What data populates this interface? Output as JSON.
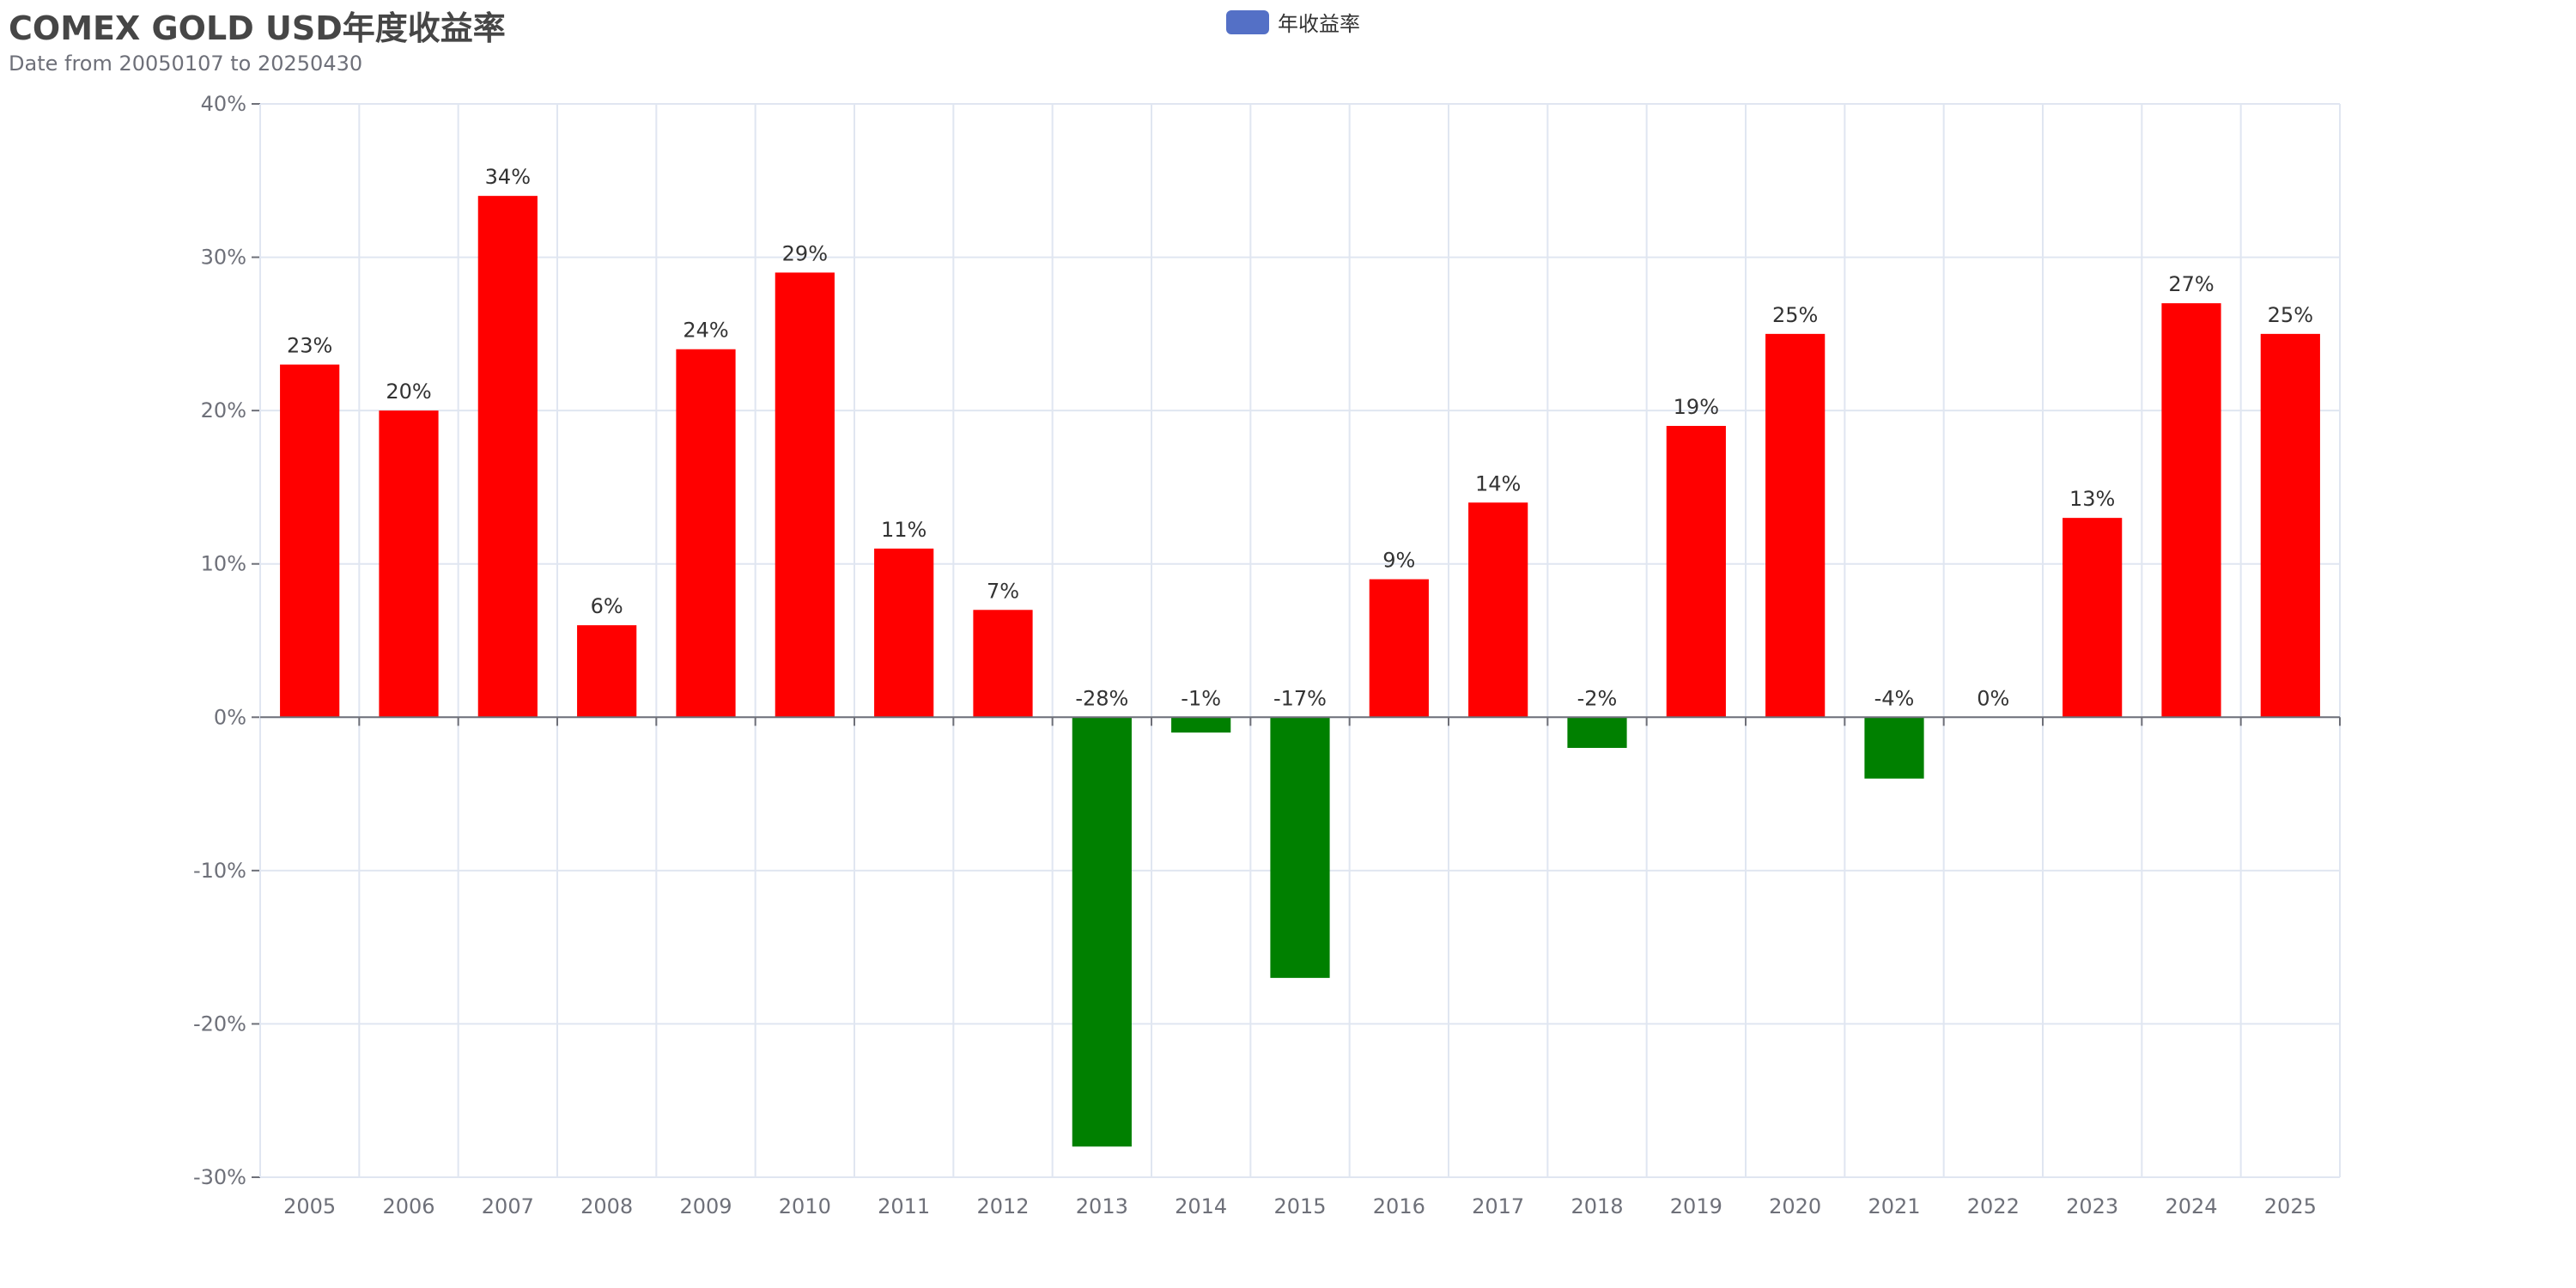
{
  "chart_data": {
    "type": "bar",
    "title": "COMEX GOLD USD年度收益率",
    "subtitle": "Date from 20050107 to 20250430",
    "legend": {
      "position": "top-center",
      "entries": [
        "年收益率"
      ]
    },
    "categories": [
      "2005",
      "2006",
      "2007",
      "2008",
      "2009",
      "2010",
      "2011",
      "2012",
      "2013",
      "2014",
      "2015",
      "2016",
      "2017",
      "2018",
      "2019",
      "2020",
      "2021",
      "2022",
      "2023",
      "2024",
      "2025"
    ],
    "series": [
      {
        "name": "年收益率",
        "values": [
          23,
          20,
          34,
          6,
          24,
          29,
          11,
          7,
          -28,
          -1,
          -17,
          9,
          14,
          -2,
          19,
          25,
          -4,
          0,
          13,
          27,
          25
        ],
        "labels": [
          "23%",
          "20%",
          "34%",
          "6%",
          "24%",
          "29%",
          "11%",
          "7%",
          "-28%",
          "-1%",
          "-17%",
          "9%",
          "14%",
          "-2%",
          "19%",
          "25%",
          "-4%",
          "0%",
          "13%",
          "27%",
          "25%"
        ]
      }
    ],
    "ylim": [
      -30,
      40
    ],
    "yticks": [
      40,
      30,
      20,
      10,
      0,
      -10,
      -20,
      -30
    ],
    "ytick_labels": [
      "40%",
      "30%",
      "20%",
      "10%",
      "0%",
      "-10%",
      "-20%",
      "-30%"
    ],
    "grid": true,
    "colors": {
      "positive": "#ff0000",
      "negative": "#008000",
      "legend": "#5470c6",
      "grid": "#e0e6f1",
      "axis": "#6e7079"
    }
  }
}
